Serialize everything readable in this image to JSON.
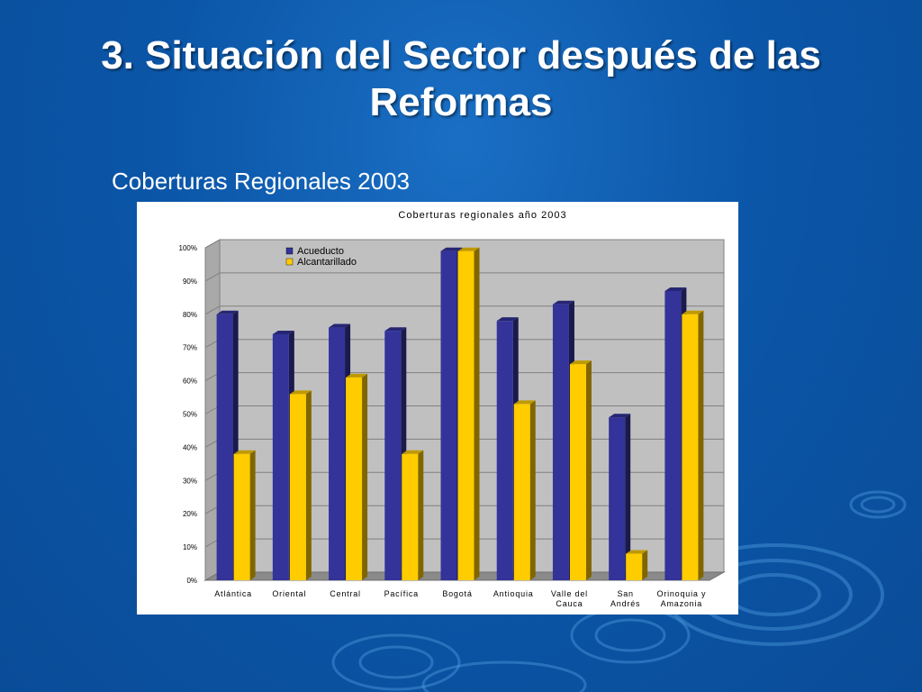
{
  "slide": {
    "title": "3. Situación del Sector después de las Reformas",
    "subtitle": "Coberturas Regionales 2003"
  },
  "colors": {
    "background": "#0b56a8",
    "acueducto": "#33339a",
    "alcantarillado": "#ffcc00",
    "plot_area": "#c0c0c0"
  },
  "chart_data": {
    "type": "bar",
    "title": "Coberturas regionales año 2003",
    "categories": [
      [
        "Atlántica"
      ],
      [
        "Oriental"
      ],
      [
        "Central"
      ],
      [
        "Pacífica"
      ],
      [
        "Bogotá"
      ],
      [
        "Antioquia"
      ],
      [
        "Valle del",
        "Cauca"
      ],
      [
        "San",
        "Andrés"
      ],
      [
        "Orinoquia y",
        "Amazonia"
      ]
    ],
    "series": [
      {
        "name": "Acueducto",
        "values": [
          80,
          74,
          76,
          75,
          99,
          78,
          83,
          49,
          87
        ]
      },
      {
        "name": "Alcantarillado",
        "values": [
          38,
          56,
          61,
          38,
          99,
          53,
          65,
          8,
          80
        ]
      }
    ],
    "ylim": [
      0,
      100
    ],
    "yticks": [
      "0%",
      "10%",
      "20%",
      "30%",
      "40%",
      "50%",
      "60%",
      "70%",
      "80%",
      "90%",
      "100%"
    ],
    "grid": true,
    "legend": "top-left"
  }
}
